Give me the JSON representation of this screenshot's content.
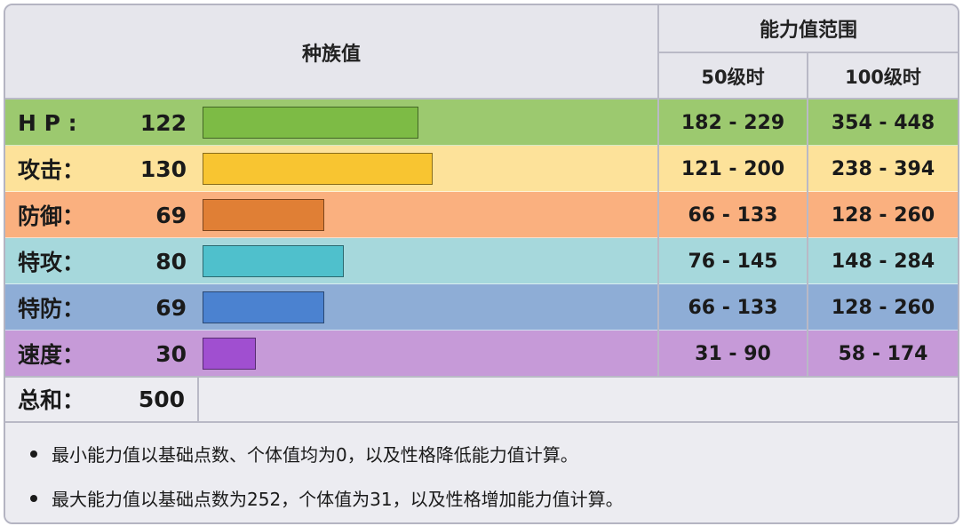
{
  "header": {
    "base_stats_title": "种族值",
    "range_title": "能力值范围",
    "level50_label": "50级时",
    "level100_label": "100级时"
  },
  "stats": [
    {
      "label": "H P :",
      "value": "122",
      "range50": "182 - 229",
      "range100": "354 - 448",
      "bar_value": 122,
      "row_color": "#9cc96f",
      "bar_color": "#7dbb45"
    },
    {
      "label": "攻击：",
      "value": "130",
      "range50": "121 - 200",
      "range100": "238 - 394",
      "bar_value": 130,
      "row_color": "#fde29a",
      "bar_color": "#f8c531"
    },
    {
      "label": "防御：",
      "value": "69",
      "range50": "66 - 133",
      "range100": "128 - 260",
      "bar_value": 69,
      "row_color": "#fab07f",
      "bar_color": "#e07f35"
    },
    {
      "label": "特攻：",
      "value": "80",
      "range50": "76 - 145",
      "range100": "148 - 284",
      "bar_value": 80,
      "row_color": "#a6d8dc",
      "bar_color": "#4fc0cc"
    },
    {
      "label": "特防：",
      "value": "69",
      "range50": "66 - 133",
      "range100": "128 - 260",
      "bar_value": 69,
      "row_color": "#8eadd6",
      "bar_color": "#4b82d0"
    },
    {
      "label": "速度：",
      "value": "30",
      "range50": "31 - 90",
      "range100": "58 - 174",
      "bar_value": 30,
      "row_color": "#c69ad8",
      "bar_color": "#a04fd0"
    }
  ],
  "total": {
    "label": "总和：",
    "value": "500"
  },
  "notes": [
    "最小能力值以基础点数、个体值均为0，以及性格降低能力值计算。",
    "最大能力值以基础点数为252，个体值为31，以及性格增加能力值计算。"
  ]
}
